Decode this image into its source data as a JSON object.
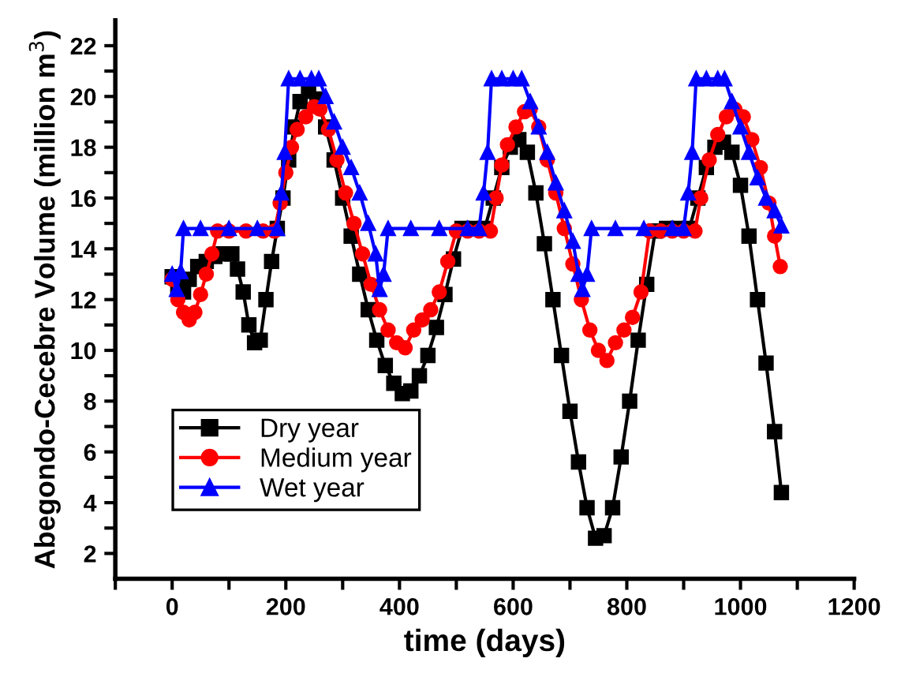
{
  "chart_data": {
    "type": "line",
    "xlabel": "time (days)",
    "ylabel": "Abegondo-Cecebre Volume (million m$^{3}$)",
    "xlim": [
      -100,
      1200
    ],
    "xticks": [
      {
        "value": -100,
        "label": null
      },
      0,
      {
        "value": 100,
        "label": null
      },
      200,
      {
        "value": 300,
        "label": null
      },
      400,
      {
        "value": 500,
        "label": null
      },
      600,
      {
        "value": 700,
        "label": null
      },
      800,
      {
        "value": 900,
        "label": null
      },
      1000,
      {
        "value": 1100,
        "label": null
      },
      1200
    ],
    "ylim": [
      1,
      23
    ],
    "yticks": [
      2,
      {
        "value": 3,
        "label": null
      },
      4,
      {
        "value": 5,
        "label": null
      },
      6,
      {
        "value": 7,
        "label": null
      },
      8,
      {
        "value": 9,
        "label": null
      },
      10,
      {
        "value": 11,
        "label": null
      },
      12,
      {
        "value": 13,
        "label": null
      },
      14,
      {
        "value": 15,
        "label": null
      },
      16,
      {
        "value": 17,
        "label": null
      },
      18,
      {
        "value": 19,
        "label": null
      },
      20,
      {
        "value": 21,
        "label": null
      },
      22
    ],
    "grid": false,
    "legend": "lower left",
    "line_style": "solid",
    "series": [
      {
        "name": "Dry year",
        "color": "#000000",
        "marker": "square",
        "x": [
          0,
          10,
          20,
          30,
          45,
          60,
          75,
          90,
          105,
          115,
          125,
          135,
          145,
          155,
          165,
          175,
          185,
          195,
          205,
          215,
          225,
          240,
          255,
          270,
          285,
          300,
          315,
          330,
          345,
          360,
          375,
          390,
          405,
          420,
          435,
          450,
          465,
          480,
          495,
          510,
          530,
          550,
          565,
          580,
          595,
          610,
          625,
          640,
          655,
          670,
          685,
          700,
          715,
          730,
          745,
          760,
          775,
          790,
          805,
          820,
          835,
          850,
          870,
          890,
          910,
          925,
          940,
          955,
          970,
          985,
          1000,
          1015,
          1030,
          1045,
          1060,
          1072
        ],
        "values": [
          12.9,
          12.5,
          12.3,
          12.8,
          13.3,
          13.5,
          13.7,
          13.8,
          13.8,
          13.2,
          12.3,
          11.0,
          10.3,
          10.4,
          12.0,
          13.5,
          14.8,
          16.0,
          17.5,
          18.8,
          19.8,
          20.2,
          19.9,
          18.8,
          17.5,
          16.0,
          14.5,
          13.0,
          11.6,
          10.4,
          9.4,
          8.7,
          8.3,
          8.4,
          9.0,
          9.8,
          10.9,
          12.2,
          13.6,
          14.8,
          14.8,
          14.8,
          16.0,
          17.2,
          18.0,
          18.3,
          17.8,
          16.2,
          14.2,
          12.0,
          9.8,
          7.6,
          5.6,
          3.8,
          2.6,
          2.7,
          3.8,
          5.8,
          8.0,
          10.4,
          12.6,
          14.7,
          14.8,
          14.8,
          14.8,
          16.0,
          17.2,
          18.0,
          18.2,
          17.8,
          16.5,
          14.5,
          12.0,
          9.5,
          6.8,
          4.4
        ]
      },
      {
        "name": "Medium year",
        "color": "#ff0000",
        "marker": "circle",
        "x": [
          0,
          10,
          20,
          30,
          40,
          50,
          60,
          70,
          80,
          100,
          130,
          160,
          180,
          190,
          200,
          210,
          220,
          235,
          250,
          260,
          275,
          290,
          305,
          320,
          335,
          350,
          365,
          380,
          395,
          410,
          425,
          440,
          455,
          470,
          485,
          500,
          520,
          540,
          560,
          570,
          580,
          590,
          605,
          620,
          630,
          645,
          660,
          675,
          690,
          705,
          720,
          735,
          750,
          765,
          780,
          795,
          810,
          825,
          840,
          860,
          880,
          900,
          920,
          930,
          945,
          960,
          975,
          990,
          1005,
          1020,
          1035,
          1050,
          1060,
          1070
        ],
        "values": [
          12.8,
          12.0,
          11.5,
          11.2,
          11.5,
          12.2,
          13.0,
          13.8,
          14.7,
          14.7,
          14.7,
          14.7,
          14.7,
          15.8,
          17.0,
          18.0,
          18.7,
          19.2,
          19.6,
          19.5,
          18.7,
          17.5,
          16.2,
          15.0,
          13.8,
          12.6,
          11.6,
          10.8,
          10.3,
          10.1,
          10.8,
          11.2,
          11.6,
          12.3,
          13.5,
          14.7,
          14.7,
          14.7,
          14.7,
          16.0,
          17.3,
          18.1,
          18.8,
          19.4,
          19.5,
          18.8,
          17.5,
          16.2,
          14.8,
          13.4,
          12.0,
          10.8,
          10.0,
          9.6,
          10.3,
          10.8,
          11.3,
          12.3,
          14.7,
          14.7,
          14.7,
          14.7,
          14.7,
          16.0,
          17.5,
          18.5,
          19.2,
          19.5,
          19.2,
          18.3,
          17.2,
          15.8,
          14.5,
          13.3
        ]
      },
      {
        "name": "Wet year",
        "color": "#0000ff",
        "marker": "triangle",
        "x": [
          0,
          8,
          15,
          20,
          50,
          100,
          150,
          185,
          192,
          198,
          205,
          225,
          245,
          258,
          270,
          285,
          300,
          315,
          330,
          345,
          358,
          365,
          372,
          380,
          420,
          470,
          520,
          540,
          548,
          555,
          562,
          580,
          600,
          615,
          630,
          645,
          660,
          675,
          690,
          705,
          715,
          722,
          730,
          738,
          780,
          830,
          880,
          900,
          908,
          915,
          922,
          940,
          960,
          972,
          985,
          1000,
          1015,
          1030,
          1045,
          1060,
          1072
        ],
        "values": [
          13.0,
          12.4,
          13.1,
          14.8,
          14.8,
          14.8,
          14.8,
          14.8,
          16.2,
          17.8,
          20.7,
          20.7,
          20.7,
          20.7,
          20.0,
          19.0,
          18.0,
          17.2,
          16.2,
          15.0,
          13.8,
          12.4,
          13.0,
          14.8,
          14.8,
          14.8,
          14.8,
          14.8,
          16.2,
          17.8,
          20.7,
          20.7,
          20.7,
          20.7,
          19.8,
          18.8,
          17.8,
          16.6,
          15.5,
          14.3,
          13.0,
          12.4,
          13.0,
          14.8,
          14.8,
          14.8,
          14.8,
          14.8,
          16.2,
          17.8,
          20.7,
          20.7,
          20.7,
          20.7,
          19.8,
          18.8,
          17.8,
          16.8,
          16.0,
          15.5,
          14.9
        ]
      }
    ]
  }
}
